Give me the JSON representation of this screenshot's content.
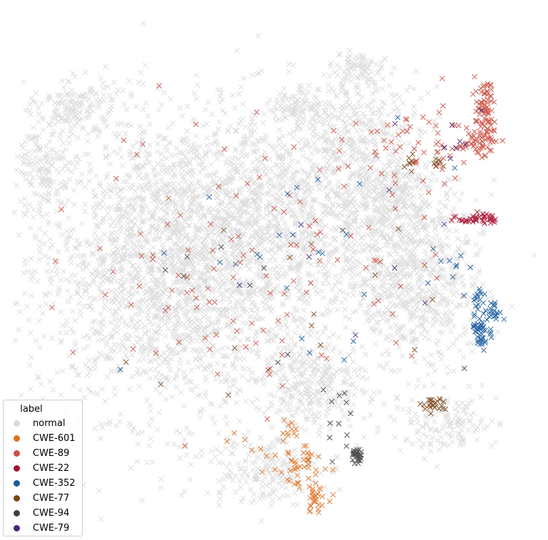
{
  "chart_data": {
    "type": "scatter",
    "title": "",
    "xlabel": "",
    "ylabel": "",
    "axes_visible": false,
    "marker": "x",
    "legend": {
      "title": "label",
      "placement": "lower-left"
    },
    "series": [
      {
        "name": "normal",
        "color": "#d9d9d9",
        "clusters": [
          {
            "x": -38,
            "y": 2,
            "sx": 22,
            "sy": 20,
            "n": 2600
          },
          {
            "x": -5,
            "y": 18,
            "sx": 18,
            "sy": 14,
            "n": 900
          },
          {
            "x": 20,
            "y": 38,
            "sx": 9,
            "sy": 9,
            "n": 350
          },
          {
            "x": 0,
            "y": 45,
            "sx": 4,
            "sy": 3,
            "n": 90
          },
          {
            "x": 18,
            "y": 56,
            "sx": 3,
            "sy": 2,
            "n": 60
          },
          {
            "x": 30,
            "y": 8,
            "sx": 12,
            "sy": 10,
            "n": 500
          },
          {
            "x": 38,
            "y": -8,
            "sx": 10,
            "sy": 9,
            "n": 380
          },
          {
            "x": 5,
            "y": -30,
            "sx": 8,
            "sy": 6,
            "n": 300
          },
          {
            "x": 45,
            "y": -40,
            "sx": 8,
            "sy": 4,
            "n": 150
          },
          {
            "x": -12,
            "y": -52,
            "sx": 9,
            "sy": 5,
            "n": 200
          },
          {
            "x": -78,
            "y": 28,
            "sx": 4,
            "sy": 8,
            "n": 150
          },
          {
            "x": -68,
            "y": 45,
            "sx": 6,
            "sy": 4,
            "n": 150
          },
          {
            "x": 30,
            "y": 22,
            "sx": 6,
            "sy": 4,
            "n": 150
          }
        ]
      },
      {
        "name": "CWE-601",
        "color": "#e07020",
        "clusters": [
          {
            "x": 0,
            "y": -52,
            "sx": 4,
            "sy": 3,
            "n": 40
          },
          {
            "x": 5,
            "y": -60,
            "sx": 2,
            "sy": 2,
            "n": 30
          },
          {
            "x": -3,
            "y": -42,
            "sx": 1.5,
            "sy": 1.5,
            "n": 10
          },
          {
            "x": -12,
            "y": -46,
            "sx": 6,
            "sy": 3,
            "n": 8
          }
        ]
      },
      {
        "name": "CWE-89",
        "color": "#cc4e42",
        "clusters": [
          {
            "x": 57,
            "y": 44,
            "sx": 1.5,
            "sy": 4,
            "n": 70
          },
          {
            "x": 55,
            "y": 36,
            "sx": 3,
            "sy": 2,
            "n": 50
          },
          {
            "x": 35,
            "y": 35,
            "sx": 10,
            "sy": 5,
            "n": 60
          },
          {
            "x": -10,
            "y": 5,
            "sx": 28,
            "sy": 20,
            "n": 120
          }
        ]
      },
      {
        "name": "CWE-22",
        "color": "#a8102e",
        "clusters": [
          {
            "x": 55,
            "y": 15,
            "sx": 3,
            "sy": 0.7,
            "n": 45
          }
        ]
      },
      {
        "name": "CWE-352",
        "color": "#1a5c9e",
        "clusters": [
          {
            "x": 56,
            "y": -15,
            "sx": 1.5,
            "sy": 2.5,
            "n": 50
          },
          {
            "x": 60,
            "y": -10,
            "sx": 1.2,
            "sy": 1.2,
            "n": 20
          },
          {
            "x": 55,
            "y": -6,
            "sx": 1.5,
            "sy": 1.5,
            "n": 15
          },
          {
            "x": 50,
            "y": 3,
            "sx": 6,
            "sy": 2,
            "n": 8
          },
          {
            "x": 0,
            "y": 5,
            "sx": 25,
            "sy": 18,
            "n": 25
          }
        ]
      },
      {
        "name": "CWE-77",
        "color": "#7b4415",
        "clusters": [
          {
            "x": 41,
            "y": -35,
            "sx": 2,
            "sy": 1,
            "n": 25
          },
          {
            "x": 34,
            "y": 30,
            "sx": 1,
            "sy": 1,
            "n": 8
          },
          {
            "x": 43,
            "y": 30,
            "sx": 1,
            "sy": 1,
            "n": 8
          },
          {
            "x": 0,
            "y": -5,
            "sx": 30,
            "sy": 20,
            "n": 15
          }
        ]
      },
      {
        "name": "CWE-94",
        "color": "#404040",
        "clusters": [
          {
            "x": 18,
            "y": -49,
            "sx": 0.7,
            "sy": 1,
            "n": 30
          },
          {
            "x": 12,
            "y": -40,
            "sx": 4,
            "sy": 5,
            "n": 12
          },
          {
            "x": -10,
            "y": -5,
            "sx": 20,
            "sy": 15,
            "n": 10
          }
        ]
      },
      {
        "name": "CWE-79",
        "color": "#4a267a",
        "clusters": [
          {
            "x": 45,
            "y": 35,
            "sx": 4,
            "sy": 3,
            "n": 6
          },
          {
            "x": 20,
            "y": 0,
            "sx": 25,
            "sy": 20,
            "n": 10
          }
        ]
      }
    ],
    "xlim": [
      -85,
      70
    ],
    "ylim": [
      -68,
      70
    ]
  }
}
